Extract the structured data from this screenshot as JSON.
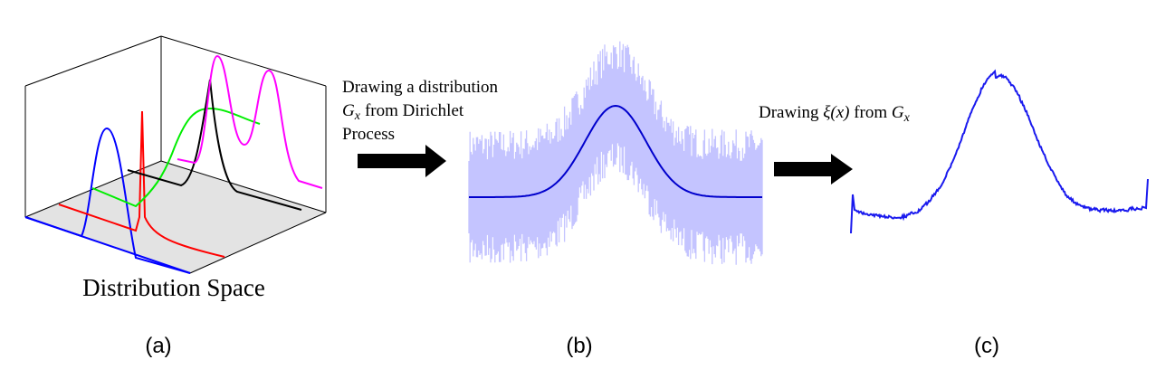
{
  "panel_a": {
    "caption": "Distribution Space",
    "label": "(a)"
  },
  "step_1": {
    "line1": "Drawing a distribution",
    "line2_symbol": "G",
    "line2_subscript": "x",
    "line2_text": "from Dirichlet",
    "line3": "Process"
  },
  "panel_b": {
    "label": "(b)"
  },
  "step_2": {
    "word1": "Drawing",
    "symbol": "ξ(x)",
    "word2": "from",
    "symbol2": "G",
    "symbol2_subscript": "x"
  },
  "panel_c": {
    "label": "(c)"
  }
}
